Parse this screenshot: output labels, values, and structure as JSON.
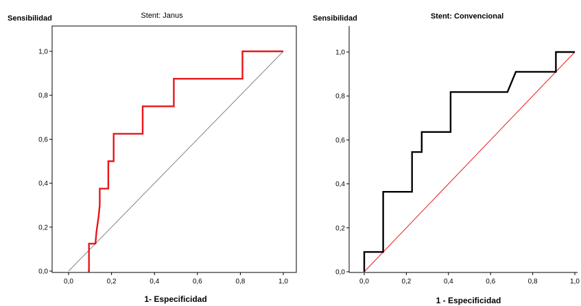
{
  "chart_data": [
    {
      "type": "line",
      "title": "Stent: Janus",
      "xlabel": "1- Especificidad",
      "ylabel": "Sensibilidad",
      "xlim": [
        0,
        1
      ],
      "ylim": [
        0,
        1
      ],
      "xticks": [
        "0,0",
        "0,2",
        "0,4",
        "0,6",
        "0,8",
        "1,0"
      ],
      "yticks": [
        "0,0",
        "0,2",
        "0,4",
        "0,6",
        "0,8",
        "1,0"
      ],
      "grid": false,
      "series": [
        {
          "color": "#e8141a",
          "x": [
            0.09,
            0.095,
            0.095,
            0.125,
            0.13,
            0.14,
            0.145,
            0.145,
            0.185,
            0.185,
            0.21,
            0.21,
            0.225,
            0.225,
            0.345,
            0.345,
            0.49,
            0.49,
            0.81,
            0.81,
            1.0
          ],
          "y": [
            0.0,
            0.0,
            0.125,
            0.125,
            0.18,
            0.25,
            0.3,
            0.375,
            0.375,
            0.5,
            0.5,
            0.625,
            0.625,
            0.625,
            0.625,
            0.75,
            0.75,
            0.875,
            0.875,
            1.0,
            1.0
          ]
        },
        {
          "color": "#808080",
          "x": [
            0,
            1
          ],
          "y": [
            0,
            1
          ]
        }
      ]
    },
    {
      "type": "line",
      "title": "Stent: Convencional",
      "xlabel": "1 - Especificidad",
      "ylabel": "Sensibilidad",
      "xlim": [
        0,
        1
      ],
      "ylim": [
        0,
        1
      ],
      "xticks": [
        "0,0",
        "0,2",
        "0,4",
        "0,6",
        "0,8",
        "1,0"
      ],
      "yticks": [
        "0,0",
        "0,2",
        "0,4",
        "0,6",
        "0,8",
        "1,0"
      ],
      "grid": false,
      "series": [
        {
          "color": "#000000",
          "x": [
            0.0,
            0.0,
            0.09,
            0.09,
            0.227,
            0.227,
            0.273,
            0.273,
            0.41,
            0.41,
            0.68,
            0.72,
            0.72,
            0.91,
            0.91,
            1.0
          ],
          "y": [
            0.0,
            0.09,
            0.09,
            0.364,
            0.364,
            0.545,
            0.545,
            0.636,
            0.636,
            0.818,
            0.818,
            0.91,
            0.91,
            0.91,
            1.0,
            1.0
          ]
        },
        {
          "color": "#e8141a",
          "x": [
            0,
            1
          ],
          "y": [
            0,
            1
          ]
        }
      ]
    }
  ]
}
